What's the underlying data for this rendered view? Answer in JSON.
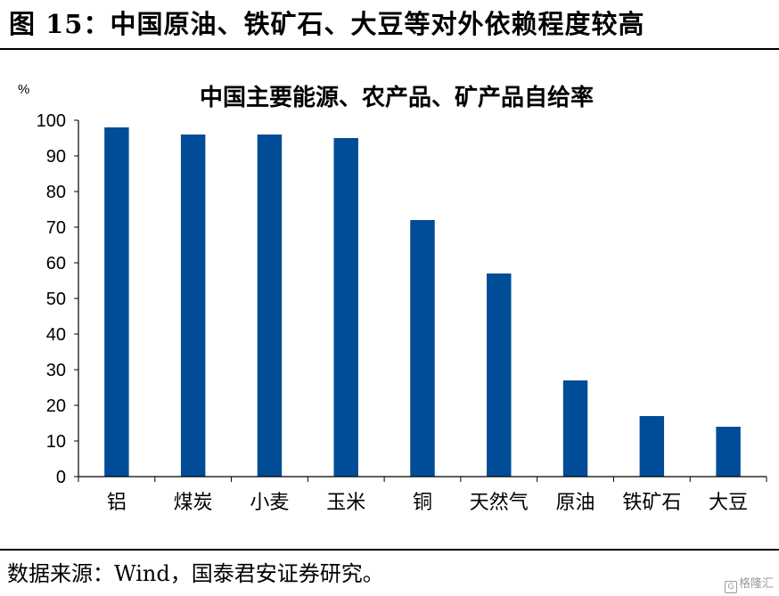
{
  "figure": {
    "title": "图 15：中国原油、铁矿石、大豆等对外依赖程度较高",
    "source": "数据来源：Wind，国泰君安证券研究。",
    "watermark": "格隆汇"
  },
  "chart_data": {
    "type": "bar",
    "title": "中国主要能源、农产品、矿产品自给率",
    "ylabel": "%",
    "xlabel": "",
    "categories": [
      "铝",
      "煤炭",
      "小麦",
      "玉米",
      "铜",
      "天然气",
      "原油",
      "铁矿石",
      "大豆"
    ],
    "values": [
      98,
      96,
      96,
      95,
      72,
      57,
      27,
      17,
      14
    ],
    "ylim": [
      0,
      100
    ],
    "yticks": [
      0,
      10,
      20,
      30,
      40,
      50,
      60,
      70,
      80,
      90,
      100
    ],
    "bar_color": "#004C97",
    "grid": false,
    "legend": "none"
  }
}
